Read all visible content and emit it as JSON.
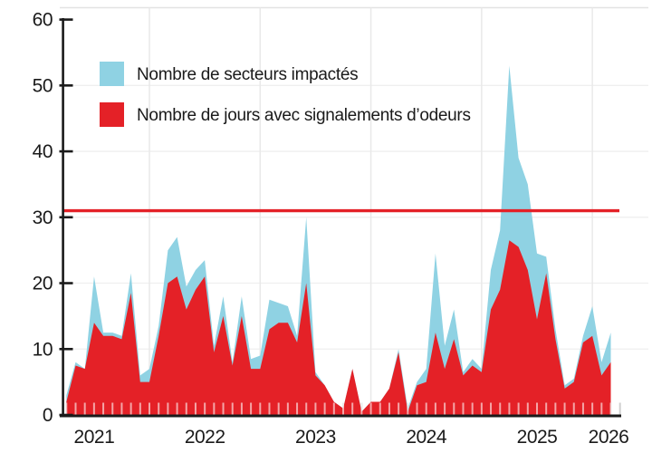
{
  "chart_data": {
    "type": "area",
    "title": "",
    "months": [
      "2021-04",
      "2021-05",
      "2021-06",
      "2021-07",
      "2021-08",
      "2021-09",
      "2021-10",
      "2021-11",
      "2021-12",
      "2022-01",
      "2022-02",
      "2022-03",
      "2022-04",
      "2022-05",
      "2022-06",
      "2022-07",
      "2022-08",
      "2022-09",
      "2022-10",
      "2022-11",
      "2022-12",
      "2023-01",
      "2023-02",
      "2023-03",
      "2023-04",
      "2023-05",
      "2023-06",
      "2023-07",
      "2023-08",
      "2023-09",
      "2023-10",
      "2023-11",
      "2023-12",
      "2024-01",
      "2024-02",
      "2024-03",
      "2024-04",
      "2024-05",
      "2024-06",
      "2024-07",
      "2024-08",
      "2024-09",
      "2024-10",
      "2024-11",
      "2024-12",
      "2025-01",
      "2025-02",
      "2025-03",
      "2025-04",
      "2025-05",
      "2025-06",
      "2025-07",
      "2025-08",
      "2025-09",
      "2025-10",
      "2025-11",
      "2025-12",
      "2026-01",
      "2026-02",
      "2026-03"
    ],
    "series": [
      {
        "name": "Nombre de secteurs impactés",
        "color": "#8fd2e3",
        "values": [
          3,
          8,
          7,
          21,
          12.5,
          12.5,
          12,
          21.5,
          6,
          7,
          13.5,
          25,
          27,
          19.5,
          22,
          23.5,
          10.5,
          18,
          8,
          18,
          8.5,
          9,
          17.5,
          17,
          16.5,
          12,
          30,
          6.5,
          4.5,
          2,
          1,
          7,
          0.5,
          2,
          2,
          4,
          10,
          1,
          5,
          7,
          24.5,
          10.5,
          16,
          6.5,
          8.5,
          7,
          22,
          28,
          53,
          39,
          35,
          24.5,
          24,
          13,
          4.5,
          5.5,
          12,
          16.5,
          8,
          12.5
        ]
      },
      {
        "name": "Nombre de jours avec signalements d’odeurs",
        "color": "#e42127",
        "values": [
          2,
          7.5,
          7,
          14,
          12,
          12,
          11.5,
          18.5,
          5,
          5,
          12,
          20,
          21,
          16,
          19,
          21,
          9.5,
          15,
          7.5,
          15,
          7,
          7,
          13,
          14,
          14,
          11,
          20,
          6,
          4.5,
          2,
          1,
          7,
          0.5,
          2,
          2,
          4,
          9.5,
          0.5,
          4.5,
          5,
          12.5,
          7,
          11.5,
          6,
          7.5,
          6.5,
          16,
          19,
          26.5,
          25.5,
          22,
          14.5,
          21.5,
          11.5,
          4,
          5,
          11,
          12,
          6,
          8
        ]
      }
    ],
    "x_tick_labels": [
      "2021",
      "2022",
      "2023",
      "2024",
      "2025",
      "2026"
    ],
    "y_ticks": [
      0,
      10,
      20,
      30,
      40,
      50,
      60
    ],
    "ylim": [
      0,
      60
    ],
    "grid": true,
    "legend_position": "top-left-inside",
    "reference_line": {
      "value": 31,
      "color": "#e42127"
    },
    "axis_color": "#1a1a1a",
    "gridline_color": "#e9e9e9",
    "minor_tick_color": "#cfcfcf"
  }
}
